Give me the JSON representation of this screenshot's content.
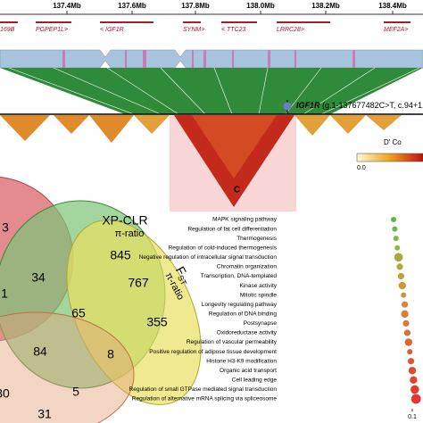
{
  "genome": {
    "ticks": [
      "137.4Mb",
      "137.6Mb",
      "137.8Mb",
      "138.0Mb",
      "138.2Mb",
      "138.4Mb"
    ],
    "genes": [
      "169B",
      "PGPEP1L>",
      "< IGF1R",
      "SYNM>",
      "< TTC23",
      "LRRC28>",
      "MEF2A>"
    ],
    "snp_gene": "IGF1R",
    "snp_detail": "(g.1-137677482C>T, c.94+1",
    "legend_title": "D' Co",
    "legend_min": "0.0"
  },
  "venn": {
    "set_labels": [
      "XP-CLR",
      "π-ratio",
      "F",
      "ST",
      "π-ratio"
    ],
    "counts": [
      "3",
      "845",
      "34",
      "767",
      "1",
      "65",
      "355",
      "84",
      "8",
      "30",
      "5",
      "31"
    ]
  },
  "panel_label": "C",
  "chart_data": {
    "type": "dot",
    "categories": [
      "MAPK signaling pathway",
      "Regulation of fat cell differentiation",
      "Thermogenesis",
      "Regulation of cold-induced thermogenesis",
      "Negative regulation of intracellular signal transduction",
      "Chromatin organization",
      "Transcription, DNA-templated",
      "Kinase activity",
      "Mitotic spindle",
      "Longevity regulating pathway",
      "Regulation of DNA binding",
      "Postsynapse",
      "Oxidoreductase activity",
      "Regulation of vascular permeability",
      "Positive regulation of adipose tissue development",
      "Histone H3-K9 modification",
      "Organic acid transport",
      "Cell leading edge",
      "Regulation of small GTPase mediated signal transduction",
      "Regulation of alternative mRNA splicing via spliceosome"
    ],
    "values": [
      0.085,
      0.086,
      0.087,
      0.088,
      0.089,
      0.09,
      0.091,
      0.092,
      0.093,
      0.094,
      0.094,
      0.095,
      0.096,
      0.097,
      0.098,
      0.099,
      0.1,
      0.101,
      0.102,
      0.103
    ],
    "counts": [
      3,
      3,
      3,
      3,
      6,
      4,
      4,
      5,
      3,
      4,
      5,
      4,
      4,
      5,
      3,
      4,
      5,
      5,
      6,
      7
    ],
    "colors": [
      "#5fb646",
      "#6cb845",
      "#7aba44",
      "#8cbb43",
      "#a8ab3c",
      "#b4a83b",
      "#c0a03a",
      "#c99a39",
      "#cf9138",
      "#d48837",
      "#d78036",
      "#da7834",
      "#dc7033",
      "#de6532",
      "#df5c31",
      "#e05430",
      "#e04b30",
      "#e1442f",
      "#e23c2f",
      "#e3342e"
    ],
    "xticks": [
      0.1
    ]
  }
}
